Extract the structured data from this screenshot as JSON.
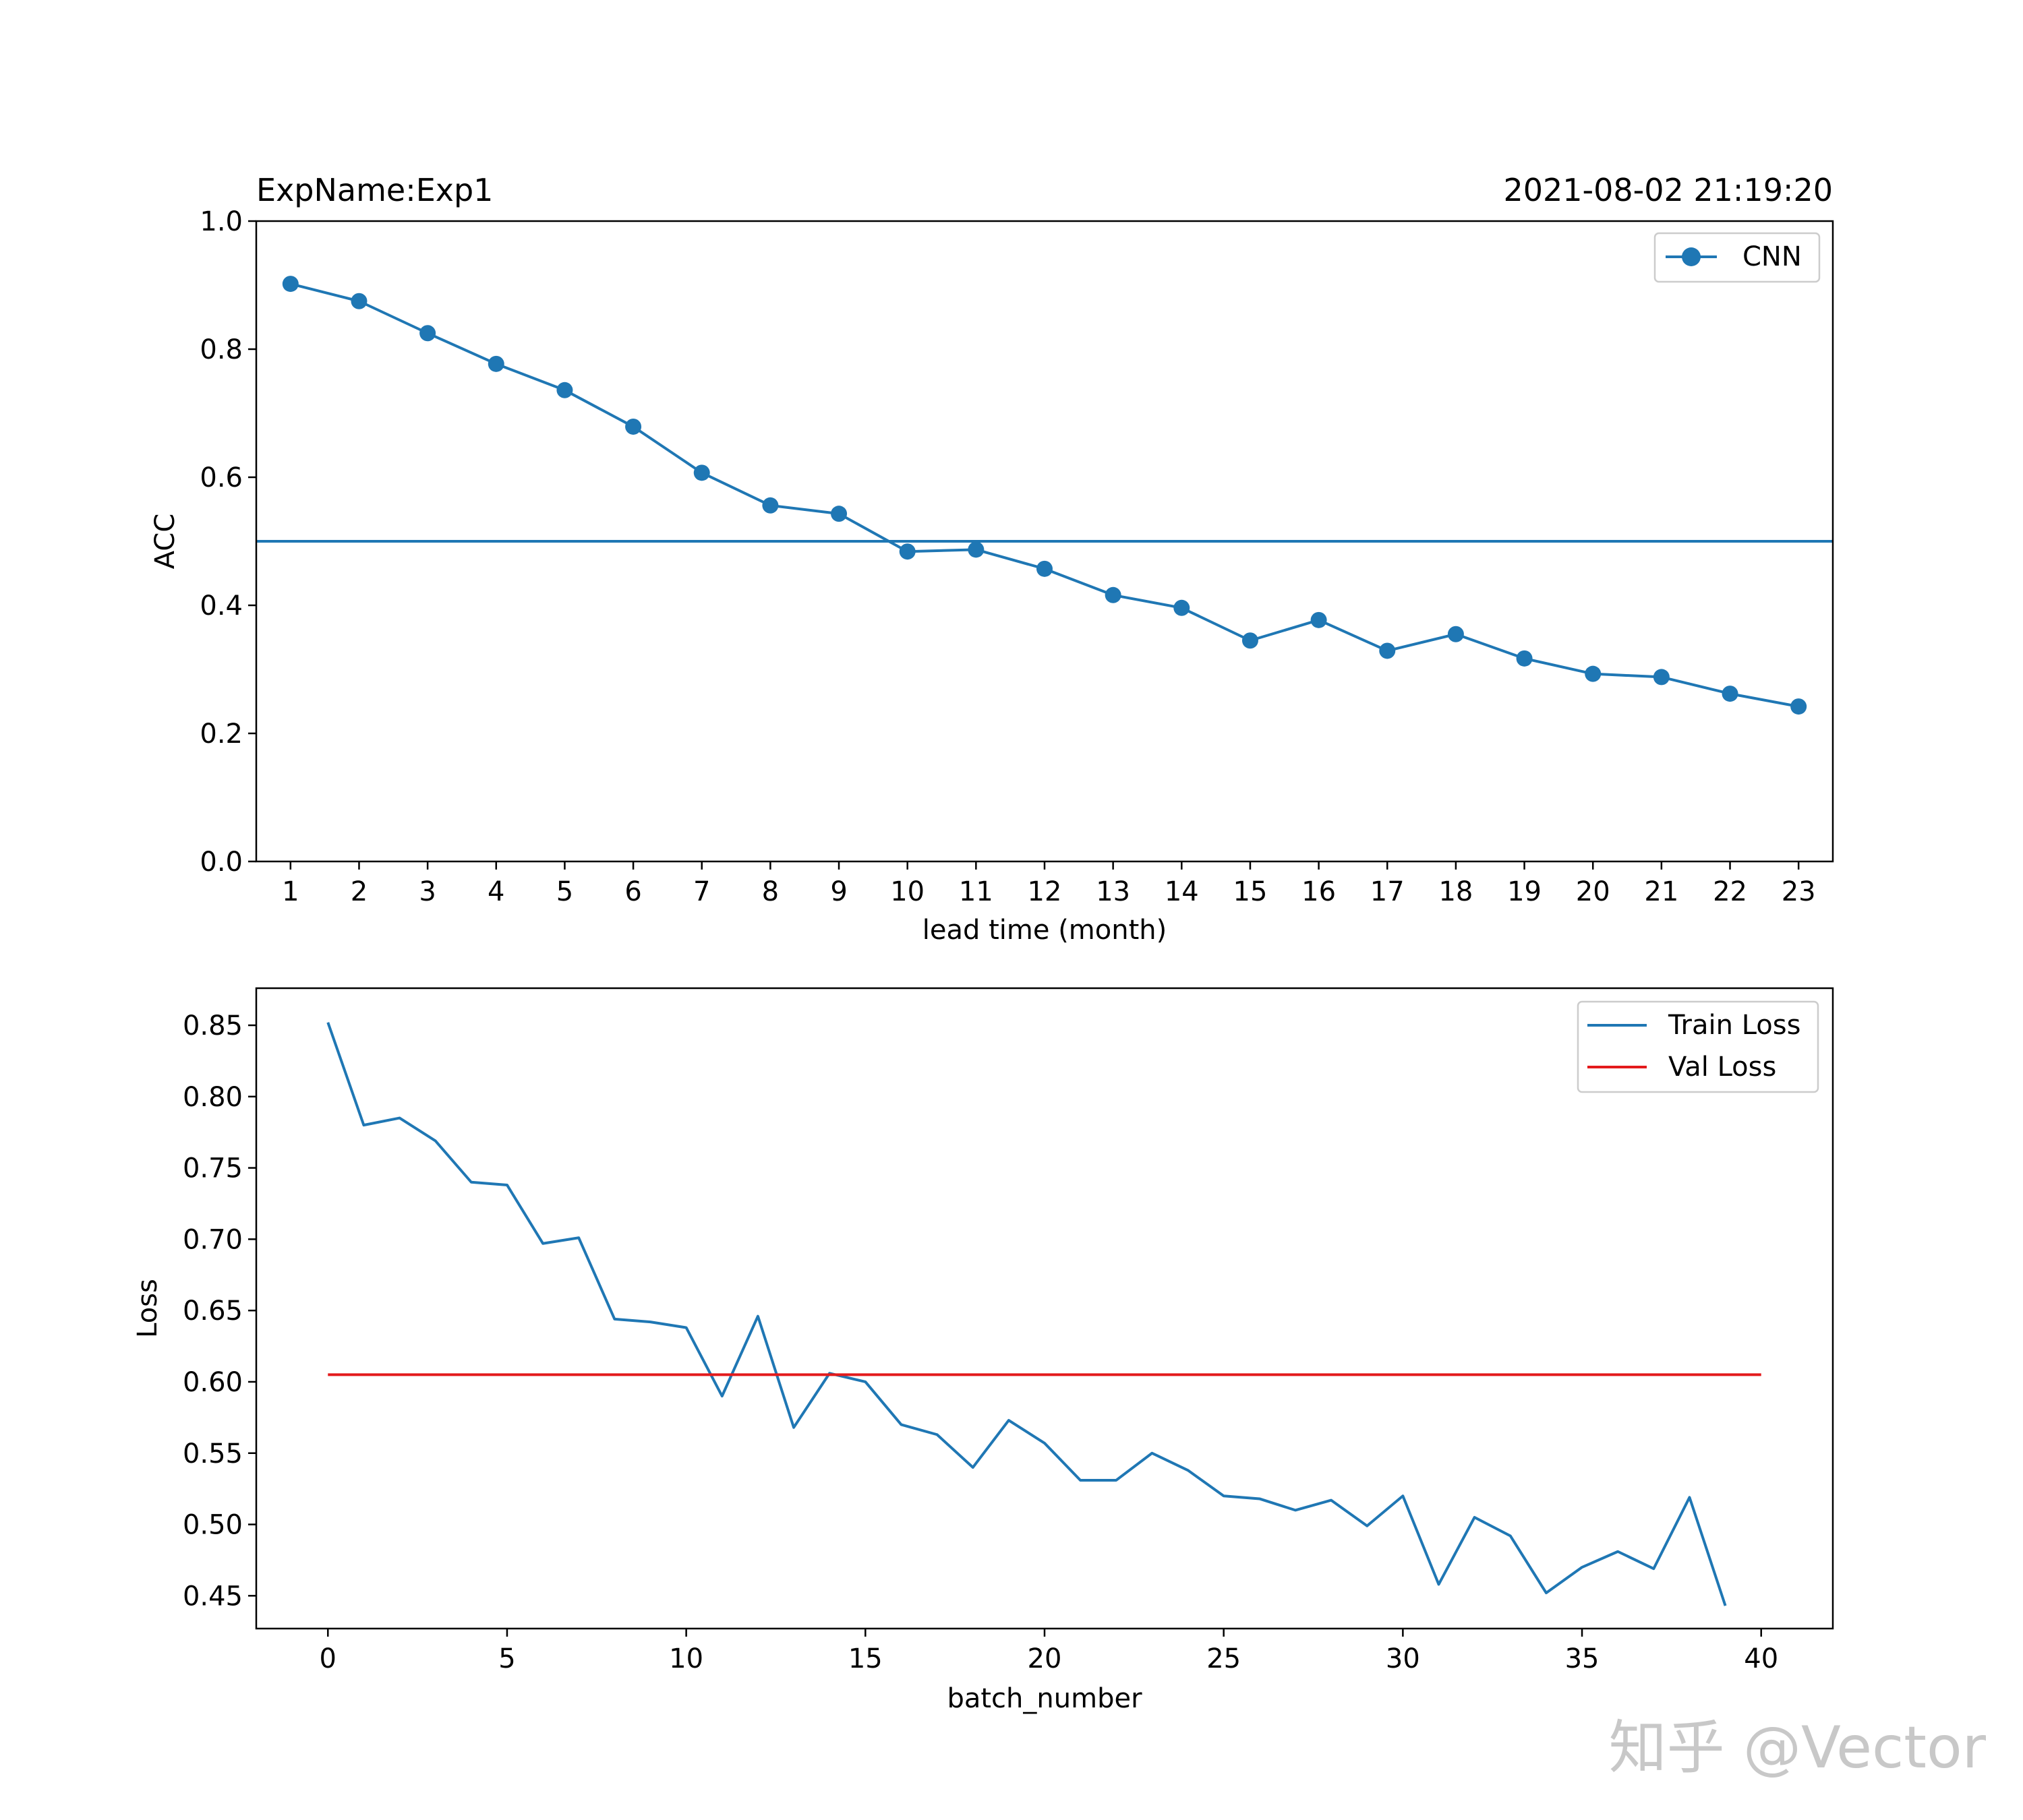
{
  "chart_data": [
    {
      "type": "line",
      "title_left": "ExpName:Exp1",
      "title_right": "2021-08-02 21:19:20",
      "xlabel": "lead time (month)",
      "ylabel": "ACC",
      "xlim": [
        0.5,
        23.5
      ],
      "ylim": [
        0.0,
        1.0
      ],
      "x_ticks": [
        1,
        2,
        3,
        4,
        5,
        6,
        7,
        8,
        9,
        10,
        11,
        12,
        13,
        14,
        15,
        16,
        17,
        18,
        19,
        20,
        21,
        22,
        23
      ],
      "y_ticks": [
        "0.0",
        "0.2",
        "0.4",
        "0.6",
        "0.8",
        "1.0"
      ],
      "grid": false,
      "legend_position": "top-right",
      "reference_line": {
        "y": 0.5,
        "color": "#1f77b4"
      },
      "series": [
        {
          "name": "CNN",
          "color": "#1f77b4",
          "marker": "circle",
          "x": [
            1,
            2,
            3,
            4,
            5,
            6,
            7,
            8,
            9,
            10,
            11,
            12,
            13,
            14,
            15,
            16,
            17,
            18,
            19,
            20,
            21,
            22,
            23
          ],
          "y": [
            0.902,
            0.875,
            0.825,
            0.777,
            0.736,
            0.679,
            0.607,
            0.556,
            0.543,
            0.484,
            0.487,
            0.457,
            0.416,
            0.396,
            0.345,
            0.377,
            0.329,
            0.355,
            0.317,
            0.293,
            0.288,
            0.262,
            0.242
          ]
        }
      ]
    },
    {
      "type": "line",
      "xlabel": "batch_number",
      "ylabel": "Loss",
      "xlim": [
        -2,
        42
      ],
      "ylim": [
        0.427,
        0.876
      ],
      "x_ticks": [
        "0",
        "5",
        "10",
        "15",
        "20",
        "25",
        "30",
        "35",
        "40"
      ],
      "y_ticks": [
        "0.45",
        "0.50",
        "0.55",
        "0.60",
        "0.65",
        "0.70",
        "0.75",
        "0.80",
        "0.85"
      ],
      "grid": false,
      "legend_position": "top-right",
      "series": [
        {
          "name": "Train Loss",
          "color": "#1f77b4",
          "x": [
            0,
            1,
            2,
            3,
            4,
            5,
            6,
            7,
            8,
            9,
            10,
            11,
            12,
            13,
            14,
            15,
            16,
            17,
            18,
            19,
            20,
            21,
            22,
            23,
            24,
            25,
            26,
            27,
            28,
            29,
            30,
            31,
            32,
            33,
            34,
            35,
            36,
            37,
            38,
            39
          ],
          "y": [
            0.852,
            0.78,
            0.785,
            0.769,
            0.74,
            0.738,
            0.697,
            0.701,
            0.644,
            0.642,
            0.638,
            0.59,
            0.646,
            0.568,
            0.606,
            0.6,
            0.57,
            0.563,
            0.54,
            0.573,
            0.557,
            0.531,
            0.531,
            0.55,
            0.538,
            0.52,
            0.518,
            0.51,
            0.517,
            0.499,
            0.52,
            0.458,
            0.505,
            0.492,
            0.452,
            0.47,
            0.481,
            0.469,
            0.519,
            0.443
          ]
        },
        {
          "name": "Val Loss",
          "color": "#e31a1c",
          "x": [
            0,
            40
          ],
          "y": [
            0.605,
            0.605
          ]
        }
      ]
    }
  ],
  "watermark": "知乎 @Vector"
}
